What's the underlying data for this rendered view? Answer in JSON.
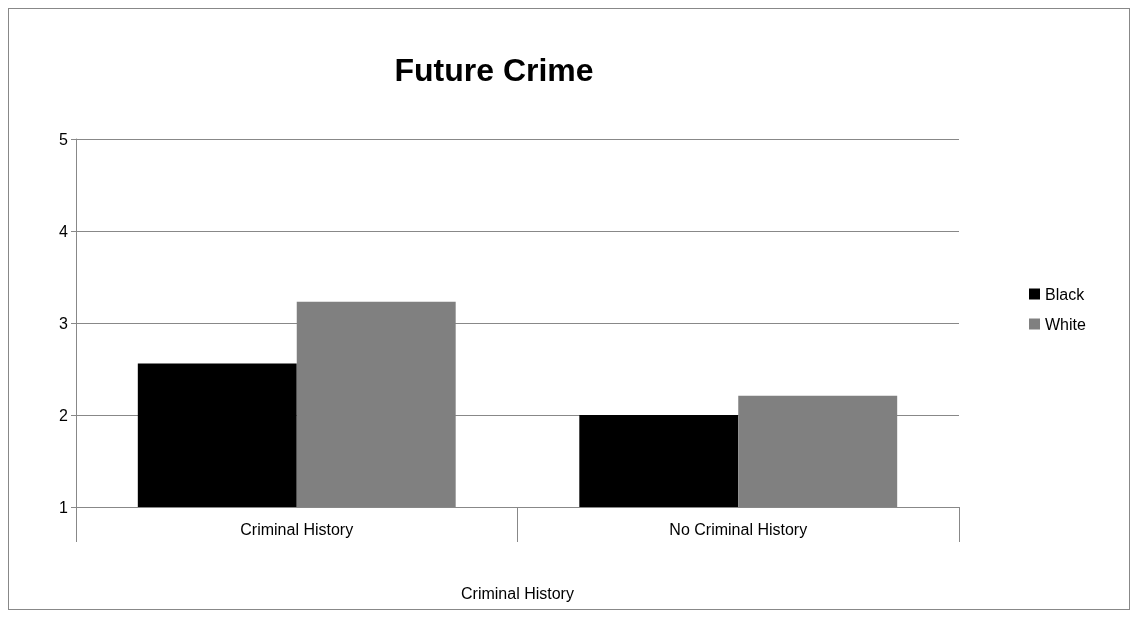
{
  "chart_data": {
    "type": "bar",
    "title": "Future Crime",
    "xlabel": "Criminal History",
    "categories": [
      "Criminal History",
      "No Criminal History"
    ],
    "series": [
      {
        "name": "Black",
        "color": "#000000",
        "values": [
          2.56,
          2.0
        ]
      },
      {
        "name": "White",
        "color": "#808080",
        "values": [
          3.23,
          2.21
        ]
      }
    ],
    "ylim": [
      1,
      5
    ],
    "yticks": [
      1,
      2,
      3,
      4,
      5
    ],
    "grid": "y",
    "legend": "right"
  }
}
